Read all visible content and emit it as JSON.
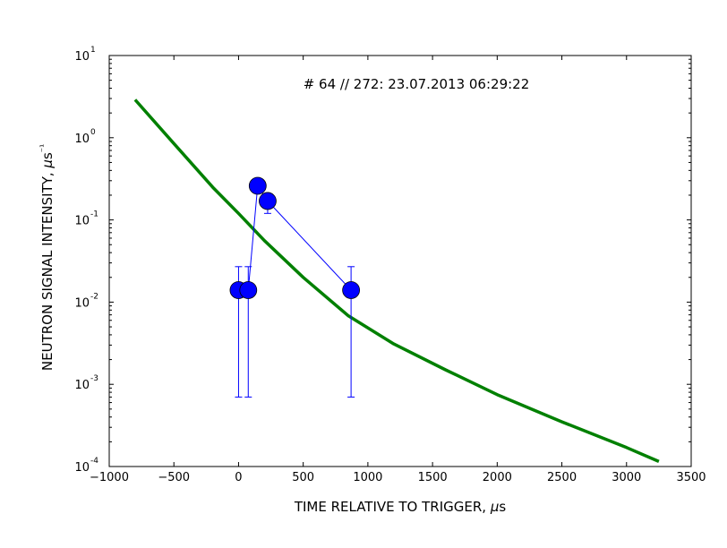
{
  "chart_data": {
    "type": "scatter",
    "title": "# 64 // 272: 23.07.2013 06:29:22",
    "xlabel": "TIME RELATIVE TO TRIGGER, μs",
    "ylabel": "NEUTRON SIGNAL INTENSITY, μs⁻¹",
    "xlim": [
      -1000,
      3500
    ],
    "ylim": [
      0.0001,
      10
    ],
    "yscale": "log",
    "grid": false,
    "x_ticks": [
      -1000,
      -500,
      0,
      500,
      1000,
      1500,
      2000,
      2500,
      3000,
      3500
    ],
    "x_tick_labels": [
      "−1000",
      "−500",
      "0",
      "500",
      "1000",
      "1500",
      "2000",
      "2500",
      "3000",
      "3500"
    ],
    "y_ticks": [
      {
        "value": 0.0001,
        "base": "10",
        "exp": "-4"
      },
      {
        "value": 0.001,
        "base": "10",
        "exp": "-3"
      },
      {
        "value": 0.01,
        "base": "10",
        "exp": "-2"
      },
      {
        "value": 0.1,
        "base": "10",
        "exp": "-1"
      },
      {
        "value": 1,
        "base": "10",
        "exp": "0"
      },
      {
        "value": 10,
        "base": "10",
        "exp": "1"
      }
    ],
    "series": [
      {
        "color": "#0000ff",
        "marker": "circle",
        "points": [
          {
            "x": 0,
            "y": 0.014,
            "err_low": 0.0007,
            "err_high": 0.027
          },
          {
            "x": 75,
            "y": 0.014,
            "err_low": 0.0007,
            "err_high": 0.027
          },
          {
            "x": 148,
            "y": 0.26,
            "err_low": 0.23,
            "err_high": 0.29
          },
          {
            "x": 225,
            "y": 0.17,
            "err_low": 0.12,
            "err_high": 0.2
          },
          {
            "x": 870,
            "y": 0.014,
            "err_low": 0.0007,
            "err_high": 0.027
          }
        ]
      },
      {
        "color": "#008000",
        "type": "line",
        "x": [
          -800,
          -500,
          -200,
          0,
          200,
          500,
          850,
          1200,
          1600,
          2000,
          2500,
          3000,
          3250
        ],
        "y": [
          2.9,
          0.85,
          0.25,
          0.12,
          0.056,
          0.02,
          0.0068,
          0.0031,
          0.0015,
          0.00075,
          0.00035,
          0.00017,
          0.000115
        ]
      }
    ]
  }
}
